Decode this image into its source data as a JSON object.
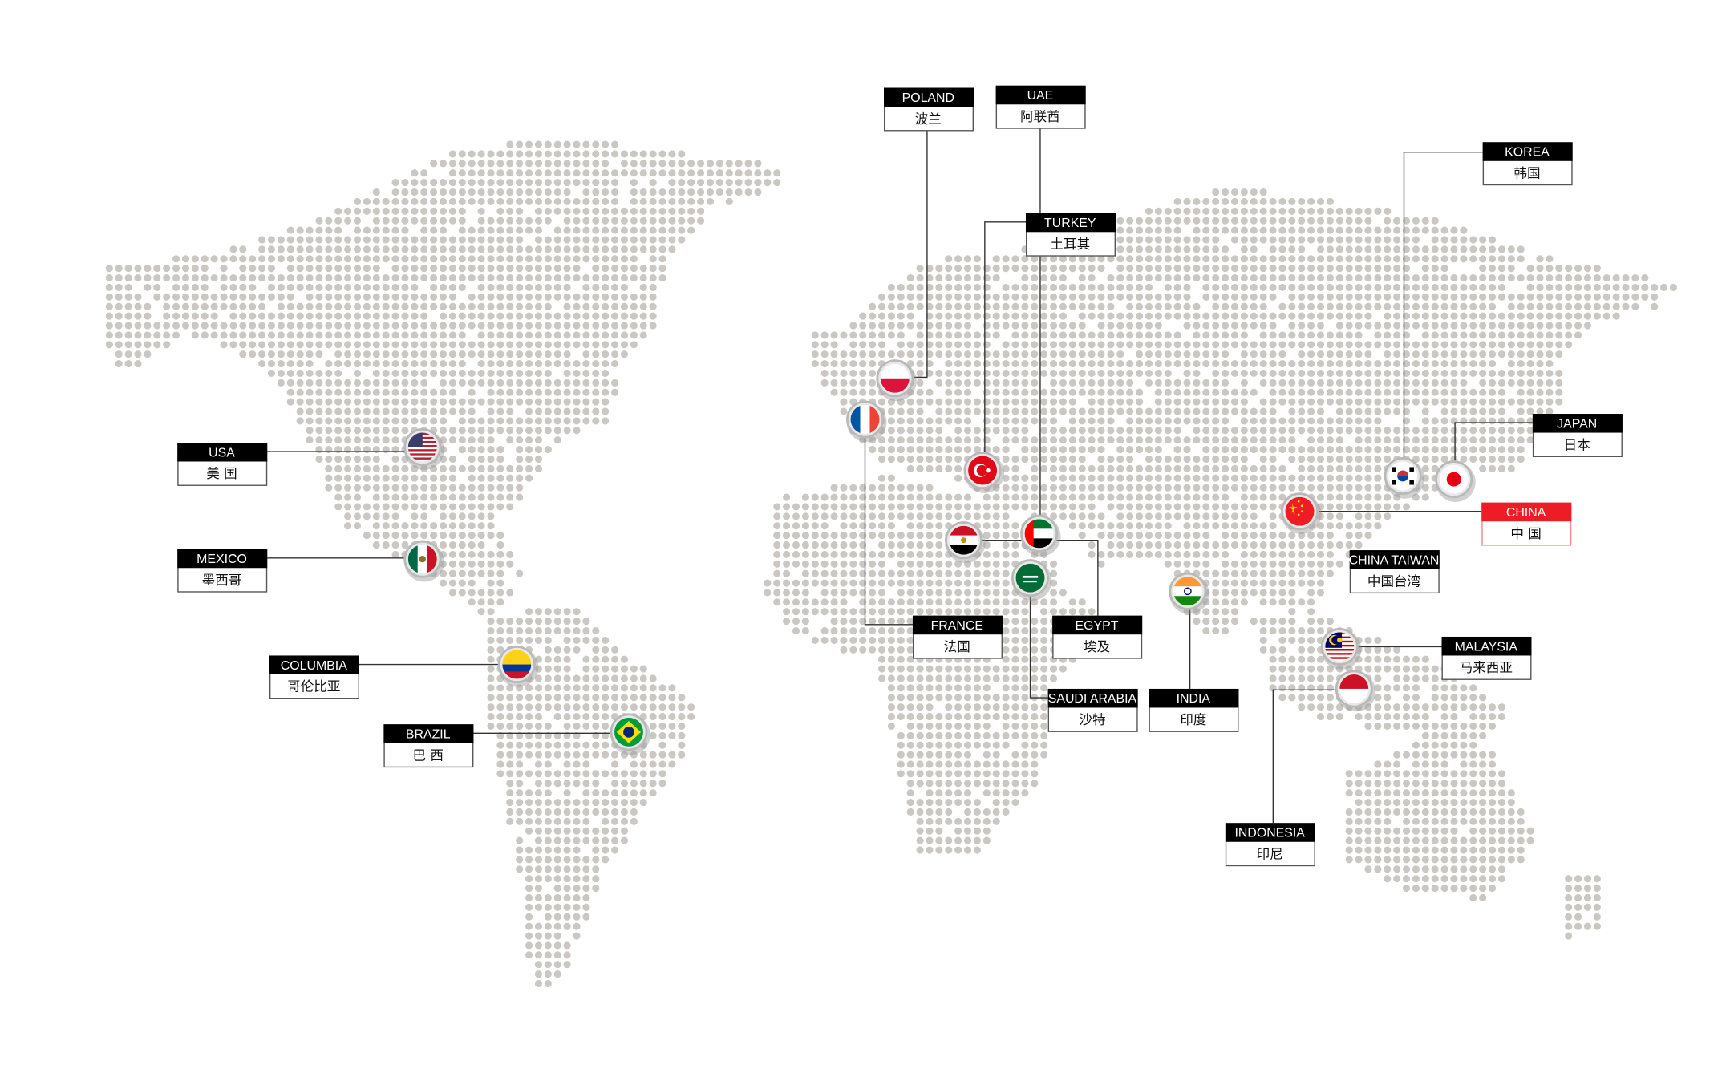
{
  "colors": {
    "dot": "#cbc8c3",
    "label_header": "#000000",
    "label_border": "#555555",
    "highlight": "#ee1c25",
    "leader_line": "#333333",
    "flag_ring": "#b9b9b9"
  },
  "labels": [
    {
      "id": "poland",
      "en": "POLAND",
      "zh": "波兰",
      "flag": "poland-flag-icon"
    },
    {
      "id": "uae",
      "en": "UAE",
      "zh": "阿联酋",
      "flag": "uae-flag-icon"
    },
    {
      "id": "turkey",
      "en": "TURKEY",
      "zh": "土耳其",
      "flag": "turkey-flag-icon"
    },
    {
      "id": "korea",
      "en": "KOREA",
      "zh": "韩国",
      "flag": "korea-flag-icon"
    },
    {
      "id": "japan",
      "en": "JAPAN",
      "zh": "日本",
      "flag": "japan-flag-icon"
    },
    {
      "id": "usa",
      "en": "USA",
      "zh": "美 国",
      "flag": "usa-flag-icon"
    },
    {
      "id": "china",
      "en": "CHINA",
      "zh": "中 国",
      "flag": "china-flag-icon",
      "highlight": true
    },
    {
      "id": "taiwan",
      "en": "CHINA TAIWAN",
      "zh": "中国台湾"
    },
    {
      "id": "mexico",
      "en": "MEXICO",
      "zh": "墨西哥",
      "flag": "mexico-flag-icon"
    },
    {
      "id": "columbia",
      "en": "COLUMBIA",
      "zh": "哥伦比亚",
      "flag": "colombia-flag-icon"
    },
    {
      "id": "france",
      "en": "FRANCE",
      "zh": "法国",
      "flag": "france-flag-icon"
    },
    {
      "id": "egypt",
      "en": "EGYPT",
      "zh": "埃及",
      "flag": "egypt-flag-icon"
    },
    {
      "id": "brazil",
      "en": "BRAZIL",
      "zh": "巴 西",
      "flag": "brazil-flag-icon"
    },
    {
      "id": "malaysia",
      "en": "MALAYSIA",
      "zh": "马来西亚",
      "flag": "malaysia-flag-icon"
    },
    {
      "id": "saudi",
      "en": "SAUDI ARABIA",
      "zh": "沙特",
      "flag": "saudi-arabia-flag-icon"
    },
    {
      "id": "india",
      "en": "INDIA",
      "zh": "印度",
      "flag": "india-flag-icon"
    },
    {
      "id": "indonesia",
      "en": "INDONESIA",
      "zh": "印尼",
      "flag": "indonesia-flag-icon"
    }
  ]
}
